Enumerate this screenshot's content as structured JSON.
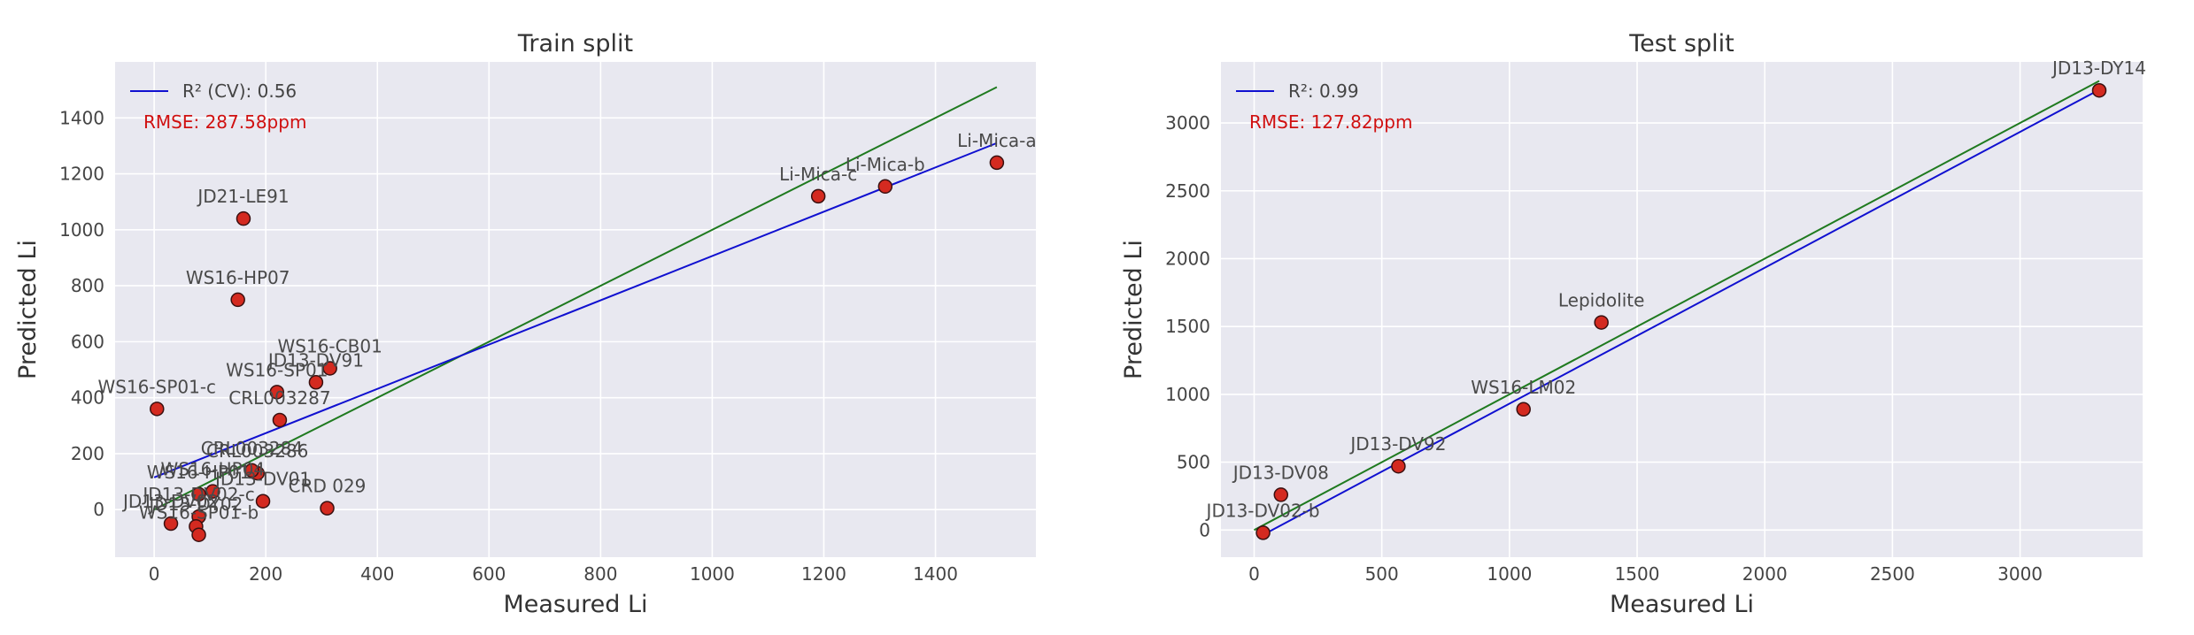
{
  "chart_data": [
    {
      "type": "scatter",
      "title": "Train split",
      "xlabel": "Measured Li",
      "ylabel": "Predicted Li",
      "xlim": [
        -70,
        1580
      ],
      "ylim": [
        -170,
        1600
      ],
      "xticks": [
        0,
        200,
        400,
        600,
        800,
        1000,
        1200,
        1400
      ],
      "yticks": [
        0,
        200,
        400,
        600,
        800,
        1000,
        1200,
        1400
      ],
      "grid": true,
      "legend_position": "top-left",
      "legend_entries": [
        {
          "label": "R² (CV): 0.56",
          "color": "#1010d0"
        }
      ],
      "annotation": {
        "text": "RMSE: 287.58ppm",
        "color": "#d01010"
      },
      "identity_line": {
        "x": [
          0,
          1510
        ],
        "y": [
          0,
          1510
        ],
        "color": "#1f7a1f"
      },
      "fit_line": {
        "x": [
          0,
          1510
        ],
        "y": [
          115,
          1310
        ],
        "color": "#1010d0"
      },
      "marker": {
        "fill": "#d42a20",
        "stroke": "#3a1010"
      },
      "points": [
        {
          "x": 5,
          "y": 360,
          "label": "WS16-SP01-c"
        },
        {
          "x": 160,
          "y": 1040,
          "label": "JD21-LE91"
        },
        {
          "x": 150,
          "y": 750,
          "label": "WS16-HP07"
        },
        {
          "x": 315,
          "y": 505,
          "label": "WS16-CB01"
        },
        {
          "x": 290,
          "y": 455,
          "label": "JD13-DV91"
        },
        {
          "x": 220,
          "y": 420,
          "label": "WS16-SP01"
        },
        {
          "x": 225,
          "y": 320,
          "label": "CRL003287"
        },
        {
          "x": 185,
          "y": 130,
          "label": "CRL003286"
        },
        {
          "x": 175,
          "y": 140,
          "label": "CRL003284"
        },
        {
          "x": 105,
          "y": 65,
          "label": "WS16-HP04"
        },
        {
          "x": 80,
          "y": 55,
          "label": "WS16-HP01"
        },
        {
          "x": 195,
          "y": 30,
          "label": "JD13-DV01"
        },
        {
          "x": 310,
          "y": 5,
          "label": "CRD 029"
        },
        {
          "x": 30,
          "y": -50,
          "label": "JD13-DV02"
        },
        {
          "x": 80,
          "y": -25,
          "label": "JD13-DV02-c"
        },
        {
          "x": 75,
          "y": -60,
          "label": "JD13-DY02"
        },
        {
          "x": 80,
          "y": -90,
          "label": "WS16-SP01-b"
        },
        {
          "x": 1190,
          "y": 1120,
          "label": "Li-Mica-c"
        },
        {
          "x": 1310,
          "y": 1155,
          "label": "Li-Mica-b"
        },
        {
          "x": 1510,
          "y": 1240,
          "label": "Li-Mica-a"
        }
      ]
    },
    {
      "type": "scatter",
      "title": "Test split",
      "xlabel": "Measured Li",
      "ylabel": "Predicted Li",
      "xlim": [
        -130,
        3480
      ],
      "ylim": [
        -200,
        3450
      ],
      "xticks": [
        0,
        500,
        1000,
        1500,
        2000,
        2500,
        3000
      ],
      "yticks": [
        0,
        500,
        1000,
        1500,
        2000,
        2500,
        3000
      ],
      "grid": true,
      "legend_position": "top-left",
      "legend_entries": [
        {
          "label": "R²: 0.99",
          "color": "#1010d0"
        }
      ],
      "annotation": {
        "text": "RMSE: 127.82ppm",
        "color": "#d01010"
      },
      "identity_line": {
        "x": [
          0,
          3310
        ],
        "y": [
          0,
          3310
        ],
        "color": "#1f7a1f"
      },
      "fit_line": {
        "x": [
          30,
          3310
        ],
        "y": [
          -40,
          3245
        ],
        "color": "#1010d0"
      },
      "marker": {
        "fill": "#d42a20",
        "stroke": "#3a1010"
      },
      "points": [
        {
          "x": 35,
          "y": -20,
          "label": "JD13-DV02-b"
        },
        {
          "x": 105,
          "y": 260,
          "label": "JD13-DV08"
        },
        {
          "x": 565,
          "y": 470,
          "label": "JD13-DV92"
        },
        {
          "x": 1055,
          "y": 890,
          "label": "WS16-LM02"
        },
        {
          "x": 1360,
          "y": 1530,
          "label": "Lepidolite"
        },
        {
          "x": 3310,
          "y": 3240,
          "label": "JD13-DY14"
        }
      ]
    }
  ]
}
